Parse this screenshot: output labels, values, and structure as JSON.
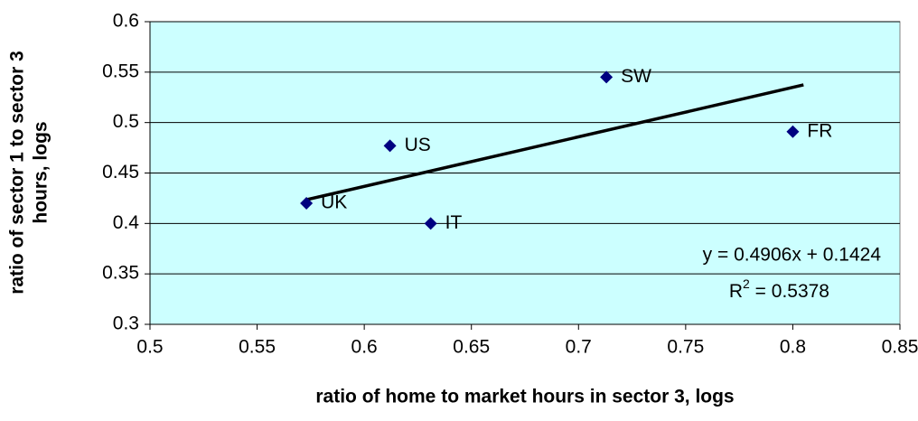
{
  "chart_data": {
    "type": "scatter",
    "x_label": "ratio of home to market hours in sector 3, logs",
    "y_label": [
      "ratio of sector 1 to sector 3",
      "hours, logs"
    ],
    "labels": [
      "UK",
      "US",
      "IT",
      "SW",
      "FR"
    ],
    "x": [
      0.573,
      0.612,
      0.631,
      0.713,
      0.8
    ],
    "values": [
      0.42,
      0.477,
      0.4,
      0.545,
      0.491
    ],
    "color": "#000080",
    "background": "#ccffff",
    "xlim": [
      0.5,
      0.85
    ],
    "xticks": [
      0.5,
      0.55,
      0.6,
      0.65,
      0.7,
      0.75,
      0.8,
      0.85
    ],
    "ylim": [
      0.3,
      0.6
    ],
    "yticks": [
      0.3,
      0.35,
      0.4,
      0.45,
      0.5,
      0.55,
      0.6
    ],
    "grid": true,
    "trendline": {
      "slope": 0.4906,
      "intercept": 0.1424,
      "x": [
        0.573,
        0.805
      ]
    },
    "equation": "y = 0.4906x + 0.1424",
    "r2_label": [
      "R",
      "2",
      " = 0.5378"
    ]
  }
}
